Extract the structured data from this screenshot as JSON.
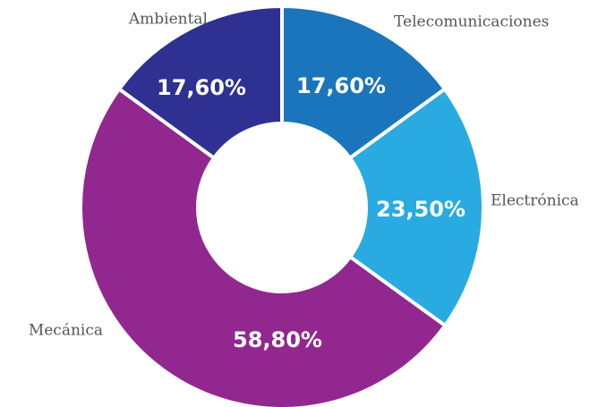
{
  "chart_data": {
    "type": "donut",
    "categories": [
      "Telecomunicaciones",
      "Electrónica",
      "Mecánica",
      "Ambiental"
    ],
    "values": [
      17.6,
      23.5,
      58.8,
      17.6
    ],
    "value_labels": [
      "17,60%",
      "23,50%",
      "58,80%",
      "17,60%"
    ],
    "colors": [
      "#1b75bc",
      "#29abe2",
      "#92278f",
      "#2e3192"
    ]
  }
}
